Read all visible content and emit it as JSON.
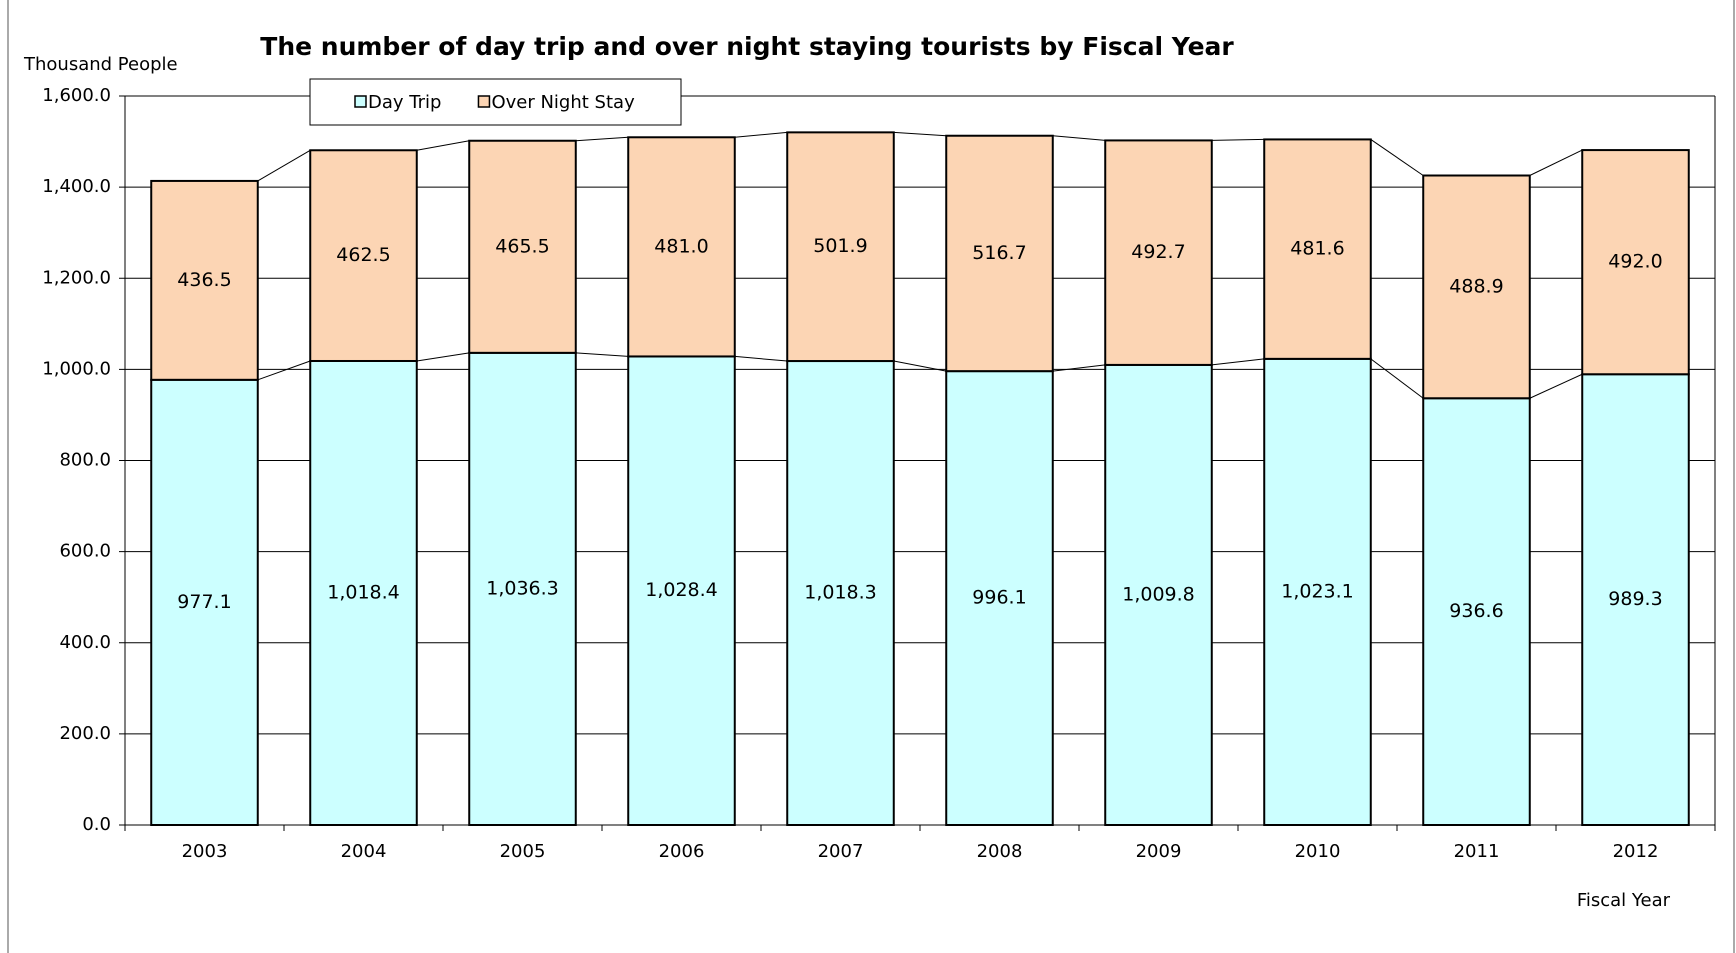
{
  "chart_data": {
    "type": "stacked_bar",
    "title": "The number of day trip and over night staying tourists by Fiscal Year",
    "y_label": "Thousand  People",
    "x_label": "Fiscal  Year",
    "categories": [
      "2003",
      "2004",
      "2005",
      "2006",
      "2007",
      "2008",
      "2009",
      "2010",
      "2011",
      "2012"
    ],
    "series": [
      {
        "name": "Day Trip",
        "color": "#ccffff",
        "values": [
          977.1,
          1018.4,
          1036.3,
          1028.4,
          1018.3,
          996.1,
          1009.8,
          1023.1,
          936.6,
          989.3
        ],
        "value_labels": [
          "977.1",
          "1,018.4",
          "1,036.3",
          "1,028.4",
          "1,018.3",
          "996.1",
          "1,009.8",
          "1,023.1",
          "936.6",
          "989.3"
        ]
      },
      {
        "name": "Over Night Stay",
        "color": "#fcd5b4",
        "values": [
          436.5,
          462.5,
          465.5,
          481.0,
          501.9,
          516.7,
          492.7,
          481.6,
          488.9,
          492.0
        ],
        "value_labels": [
          "436.5",
          "462.5",
          "465.5",
          "481.0",
          "501.9",
          "516.7",
          "492.7",
          "481.6",
          "488.9",
          "492.0"
        ]
      }
    ],
    "ylim": [
      0,
      1600
    ],
    "yticks": [
      {
        "value": 0,
        "label": "0.0"
      },
      {
        "value": 200,
        "label": "200.0"
      },
      {
        "value": 400,
        "label": "400.0"
      },
      {
        "value": 600,
        "label": "600.0"
      },
      {
        "value": 800,
        "label": "800.0"
      },
      {
        "value": 1000,
        "label": "1,000.0"
      },
      {
        "value": 1200,
        "label": "1,200.0"
      },
      {
        "value": 1400,
        "label": "1,400.0"
      },
      {
        "value": 1600,
        "label": "1,600.0"
      }
    ],
    "grid": true,
    "legend": "top"
  }
}
